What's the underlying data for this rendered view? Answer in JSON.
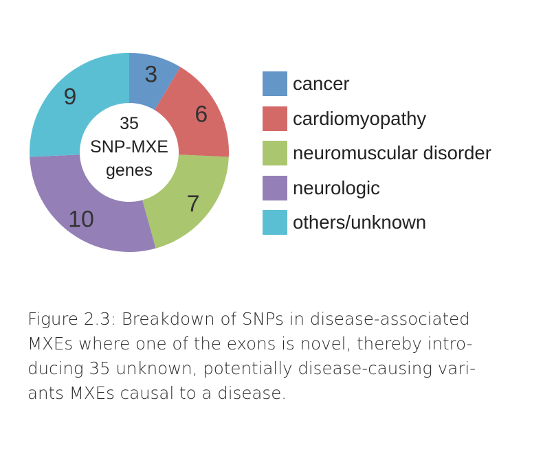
{
  "chart_data": {
    "type": "pie",
    "categories": [
      "cancer",
      "cardiomyopathy",
      "neuromuscular disorder",
      "neurologic",
      "others/unknown"
    ],
    "values": [
      3,
      6,
      7,
      10,
      9
    ],
    "colors": [
      "#6496c8",
      "#d46a68",
      "#aac66e",
      "#9480b6",
      "#5bbfd4"
    ],
    "center_label": [
      "35",
      "SNP-MXE",
      "genes"
    ],
    "legend_position": "right"
  },
  "caption_lines": [
    "Figure 2.3:  Breakdown of SNPs in disease-associated",
    "MXEs where one of the exons is novel, thereby intro-",
    "ducing 35 unknown, potentially disease-causing vari-",
    "ants MXEs causal to a disease."
  ]
}
